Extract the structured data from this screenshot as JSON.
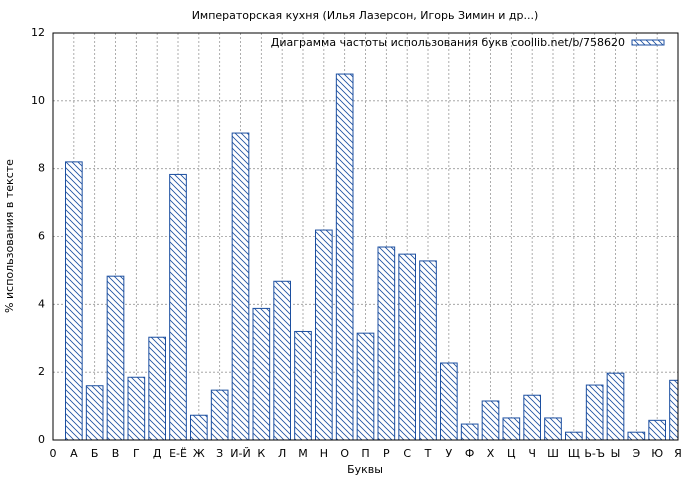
{
  "chart_data": {
    "type": "bar",
    "title": "Императорская кухня  (Илья Лазерсон, Игорь Зимин и др...)",
    "xlabel": "Буквы",
    "ylabel": "% использования в тексте",
    "x": [
      1,
      2,
      3,
      4,
      5,
      6,
      7,
      8,
      9,
      10,
      11,
      12,
      13,
      14,
      15,
      16,
      17,
      18,
      19,
      20,
      21,
      22,
      23,
      24,
      25,
      26,
      27,
      28,
      29,
      30
    ],
    "series": [
      {
        "name": "Диаграмма частоты использования букв coollib.net/b/758620",
        "color": "#1c4fa0",
        "values": [
          8.2,
          1.6,
          4.83,
          1.85,
          3.03,
          7.83,
          0.73,
          1.47,
          9.05,
          3.88,
          4.68,
          3.2,
          6.19,
          10.79,
          3.15,
          5.69,
          5.48,
          5.28,
          2.27,
          0.47,
          1.15,
          0.65,
          1.32,
          0.65,
          0.23,
          1.62,
          1.97,
          0.23,
          0.58,
          1.76
        ]
      }
    ],
    "xlim": [
      0,
      30
    ],
    "xticks": [
      0,
      {
        "value": 1,
        "label": "А"
      },
      {
        "value": 2,
        "label": "Б"
      },
      {
        "value": 3,
        "label": "В"
      },
      {
        "value": 4,
        "label": "Г"
      },
      {
        "value": 5,
        "label": "Д"
      },
      {
        "value": 6,
        "label": "Е-Ё"
      },
      {
        "value": 7,
        "label": "Ж"
      },
      {
        "value": 8,
        "label": "З"
      },
      {
        "value": 9,
        "label": "И-Й"
      },
      {
        "value": 10,
        "label": "К"
      },
      {
        "value": 11,
        "label": "Л"
      },
      {
        "value": 12,
        "label": "М"
      },
      {
        "value": 13,
        "label": "Н"
      },
      {
        "value": 14,
        "label": "О"
      },
      {
        "value": 15,
        "label": "П"
      },
      {
        "value": 16,
        "label": "Р"
      },
      {
        "value": 17,
        "label": "С"
      },
      {
        "value": 18,
        "label": "Т"
      },
      {
        "value": 19,
        "label": "У"
      },
      {
        "value": 20,
        "label": "Ф"
      },
      {
        "value": 21,
        "label": "Х"
      },
      {
        "value": 22,
        "label": "Ц"
      },
      {
        "value": 23,
        "label": "Ч"
      },
      {
        "value": 24,
        "label": "Ш"
      },
      {
        "value": 25,
        "label": "Щ"
      },
      {
        "value": 26,
        "label": "Ь-Ъ"
      },
      {
        "value": 27,
        "label": "Ы"
      },
      {
        "value": 28,
        "label": "Э"
      },
      {
        "value": 29,
        "label": "Ю"
      },
      {
        "value": 30,
        "label": "Я"
      }
    ],
    "ylim": [
      0,
      12
    ],
    "yticks": [
      0,
      2,
      4,
      6,
      8,
      10,
      12
    ],
    "grid": true,
    "legend": "upper right"
  }
}
